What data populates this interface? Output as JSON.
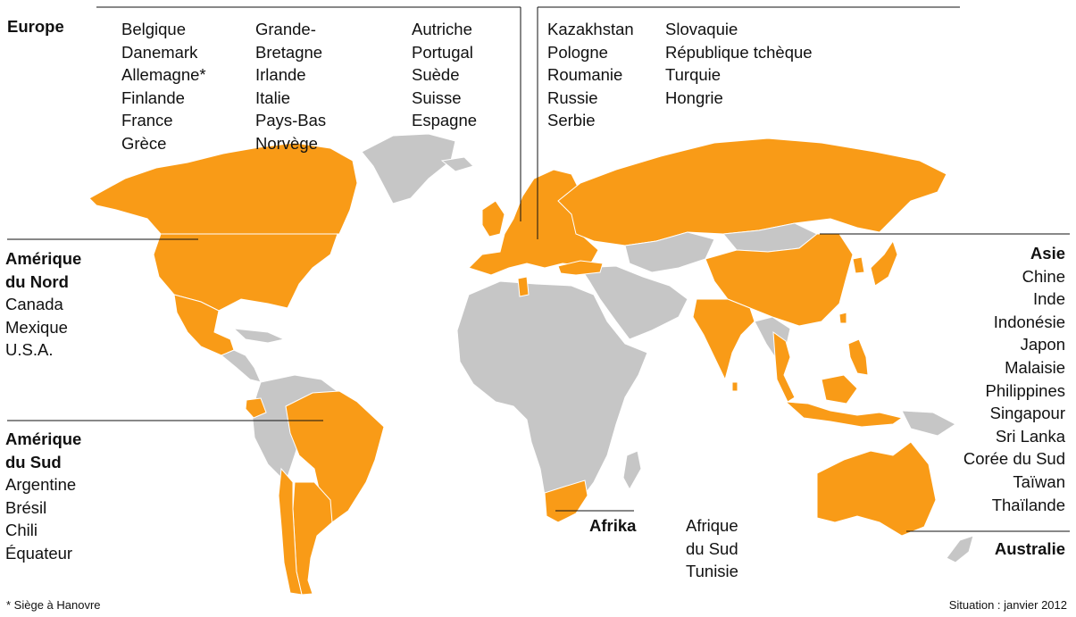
{
  "europe": {
    "title": "Europe",
    "col1": [
      "Belgique",
      "Danemark",
      "Allemagne*",
      "Finlande",
      "France",
      "Grèce"
    ],
    "col2": [
      "Grande-",
      "Bretagne",
      "Irlande",
      "Italie",
      "Pays-Bas",
      "Norvège"
    ],
    "col3": [
      "Autriche",
      "Portugal",
      "Suède",
      "Suisse",
      "Espagne"
    ],
    "col4": [
      "Kazakhstan",
      "Pologne",
      "Roumanie",
      "Russie",
      "Serbie"
    ],
    "col5": [
      "Slovaquie",
      "République tchèque",
      "Turquie",
      "Hongrie"
    ]
  },
  "north_america": {
    "title": [
      "Amérique",
      "du Nord"
    ],
    "countries": [
      "Canada",
      "Mexique",
      "U.S.A."
    ]
  },
  "south_america": {
    "title": [
      "Amérique",
      "du Sud"
    ],
    "countries": [
      "Argentine",
      "Brésil",
      "Chili",
      "Équateur"
    ]
  },
  "africa": {
    "title": "Afrika",
    "countries": [
      "Afrique",
      "du Sud",
      "Tunisie"
    ]
  },
  "asia": {
    "title": "Asie",
    "countries": [
      "Chine",
      "Inde",
      "Indonésie",
      "Japon",
      "Malaisie",
      "Philippines",
      "Singapour",
      "Sri Lanka",
      "Corée du Sud",
      "Taïwan",
      "Thaïlande"
    ]
  },
  "australia": {
    "title": "Australie"
  },
  "footnote": "* Siège à Hanovre",
  "status": "Situation : janvier 2012",
  "colors": {
    "highlight": "#f99b17",
    "other": "#c6c6c6"
  }
}
